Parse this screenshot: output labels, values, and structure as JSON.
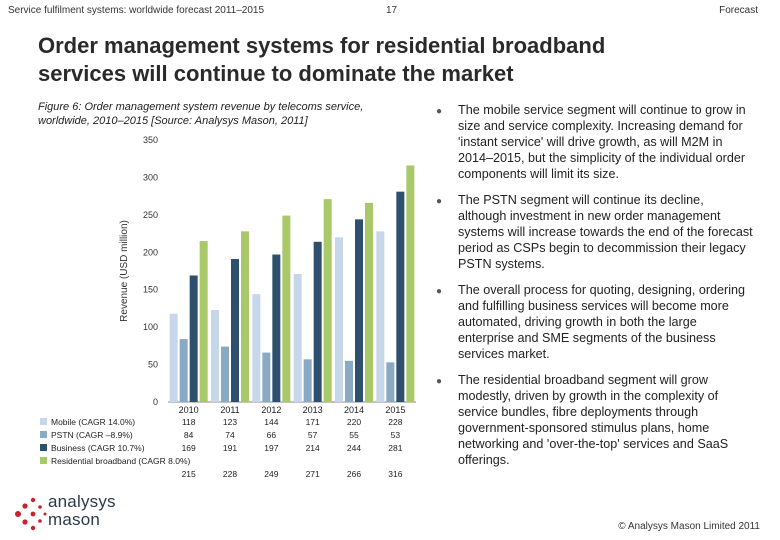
{
  "header": {
    "left": "Service fulfilment systems: worldwide forecast 2011–2015",
    "page": "17",
    "right": "Forecast"
  },
  "title_line1": "Order management systems for residential broadband",
  "title_line2": "services will continue to dominate the market",
  "caption_line1": "Figure 6: Order management system revenue by telecoms service,",
  "caption_line2": "worldwide, 2010–2015 [Source: Analysys Mason, 2011]",
  "chart_data": {
    "type": "bar",
    "ylabel": "Revenue (USD million)",
    "ylim": [
      0,
      350
    ],
    "yticks": [
      0,
      50,
      100,
      150,
      200,
      250,
      300,
      350
    ],
    "categories": [
      "2010",
      "2011",
      "2012",
      "2013",
      "2014",
      "2015"
    ],
    "series": [
      {
        "name": "Mobile (CAGR 14.0%)",
        "color": "#c5d7e8",
        "values": [
          118,
          123,
          144,
          171,
          220,
          228
        ]
      },
      {
        "name": "PSTN (CAGR –8.9%)",
        "color": "#8aa9c2",
        "values": [
          84,
          74,
          66,
          57,
          55,
          53
        ]
      },
      {
        "name": "Business (CAGR 10.7%)",
        "color": "#2f4f6e",
        "values": [
          169,
          191,
          197,
          214,
          244,
          281
        ]
      },
      {
        "name": "Residential broadband (CAGR 8.0%)",
        "color": "#a9c86a",
        "values": [
          215,
          228,
          249,
          271,
          266,
          316
        ]
      }
    ],
    "legend_placement": "bottom-table"
  },
  "bullets": [
    "The mobile service segment will continue to grow in size and service complexity. Increasing demand for 'instant service' will drive growth, as will M2M in 2014–2015, but the simplicity of the individual order components will limit its size.",
    "The PSTN segment will continue its decline, although investment in new order management systems will increase towards the end of the forecast period as CSPs begin to decommission their legacy PSTN systems.",
    "The overall process for quoting, designing, ordering and fulfilling business services will become more automated, driving growth in both the large enterprise and SME segments of the business services market.",
    "The residential broadband segment will grow modestly, driven by growth in the complexity of service bundles, fibre deployments through government-sponsored stimulus plans, home networking and 'over-the-top' services and SaaS offerings."
  ],
  "bullet_icon": "bullet-dot-icon",
  "logo": {
    "line1": "analysys",
    "line2": "mason",
    "icon": "analysys-mason-logo-icon",
    "color": "#c8232c"
  },
  "copyright": "© Analysys Mason Limited 2011"
}
